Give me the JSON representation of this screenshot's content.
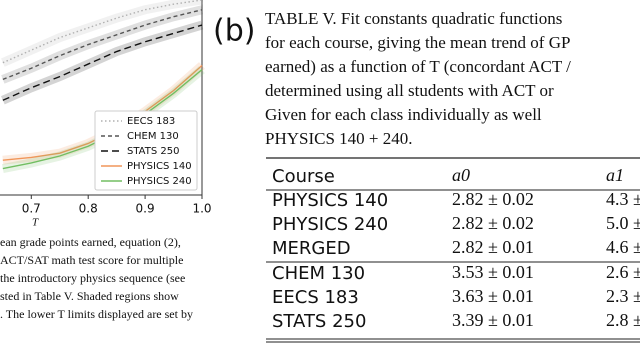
{
  "chart_data": {
    "type": "line",
    "xlabel": "T",
    "x": [
      0.65,
      0.7,
      0.75,
      0.8,
      0.85,
      0.9,
      0.95,
      1.0
    ],
    "xlim": [
      0.645,
      1.0
    ],
    "xticks": [
      0.7,
      0.8,
      0.9,
      {
        "value": 1.0,
        "label": "1.0"
      }
    ],
    "ylim": [
      2.6,
      4.0
    ],
    "legend": "lower right",
    "series": [
      {
        "name": "EECS 183",
        "color": "#b0b0b0",
        "dash": "1.5 2.5",
        "values": [
          3.55,
          3.64,
          3.73,
          3.8,
          3.87,
          3.93,
          3.97,
          4.0
        ]
      },
      {
        "name": "CHEM 130",
        "color": "#555555",
        "dash": "4 3",
        "values": [
          3.43,
          3.51,
          3.6,
          3.68,
          3.75,
          3.82,
          3.88,
          3.93
        ]
      },
      {
        "name": "STATS 250",
        "color": "#111111",
        "dash": "7 4",
        "values": [
          3.28,
          3.37,
          3.45,
          3.54,
          3.63,
          3.7,
          3.76,
          3.82
        ]
      },
      {
        "name": "PHYSICS 140",
        "color": "#f0965a",
        "dash": "",
        "values": [
          2.85,
          2.87,
          2.9,
          2.97,
          3.07,
          3.2,
          3.35,
          3.53
        ]
      },
      {
        "name": "PHYSICS 240",
        "color": "#72be62",
        "dash": "",
        "values": [
          2.79,
          2.83,
          2.88,
          2.95,
          3.05,
          3.18,
          3.33,
          3.5
        ]
      }
    ]
  },
  "figure_caption": [
    "ean grade points earned, equation (2),",
    "ACT/SAT math test score for multiple",
    "the introductory physics sequence (see",
    "sted in Table V. Shaded regions show",
    ". The lower T limits displayed are set by"
  ],
  "panel_label": "(b)",
  "table": {
    "caption": [
      "TABLE V.  Fit constants quadratic functions",
      "for each course, giving the mean trend of GP",
      "earned) as a function of T (concordant ACT /",
      "determined using all students with ACT or",
      "Given for each class individually as well",
      "PHYSICS 140 + 240."
    ],
    "header": [
      "Course",
      "a0",
      "a1"
    ],
    "rows": [
      [
        "PHYSICS 140",
        "2.82 ± 0.02",
        "4.3 ±"
      ],
      [
        "PHYSICS 240",
        "2.82 ± 0.02",
        "5.0 ±"
      ],
      [
        "MERGED",
        "2.82 ± 0.01",
        "4.6 ±"
      ],
      [
        "CHEM 130",
        "3.53 ± 0.01",
        "2.6 ±"
      ],
      [
        "EECS 183",
        "3.63 ± 0.01",
        "2.3 ±"
      ],
      [
        "STATS 250",
        "3.39 ± 0.01",
        "2.8 ±"
      ]
    ]
  }
}
